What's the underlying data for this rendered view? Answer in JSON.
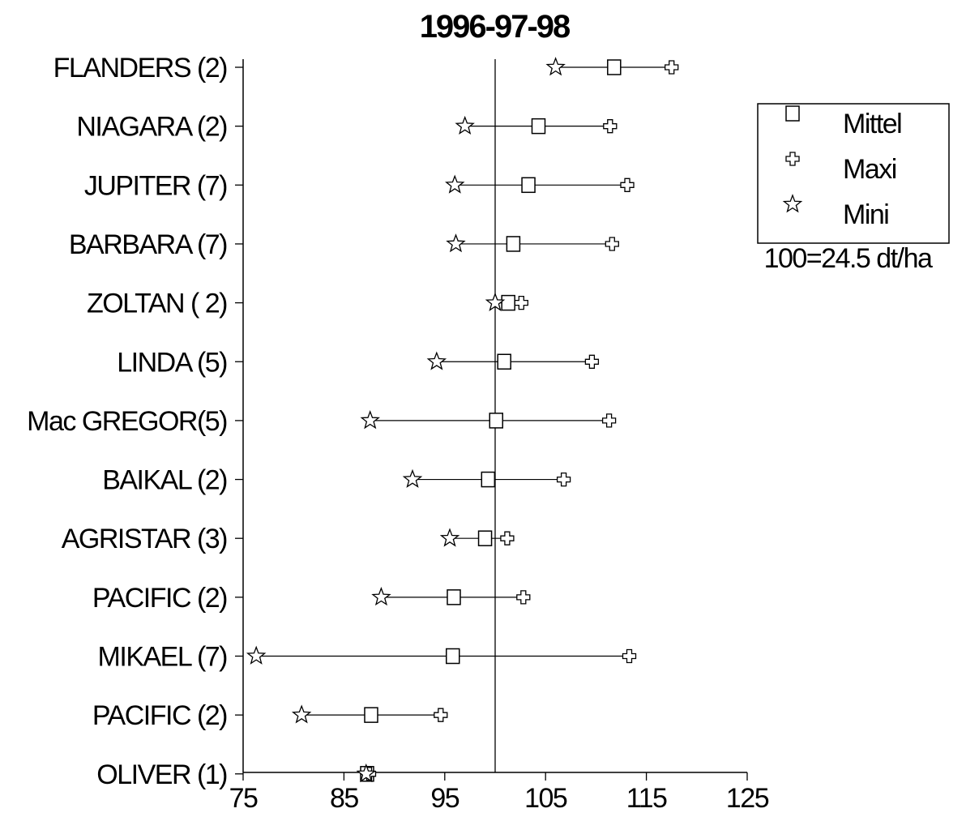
{
  "chart_data": {
    "type": "dot-range",
    "title": "1996-97-98",
    "note": "100=24.5 dt/ha",
    "categories": [
      "FLANDERS (2)",
      "NIAGARA (2)",
      "JUPITER (7)",
      "BARBARA (7)",
      "ZOLTAN ( 2)",
      "LINDA  (5)",
      "Mac GREGOR(5)",
      "BAIKAL (2)",
      "AGRISTAR (3)",
      "PACIFIC (2) ",
      "MIKAEL (7)",
      "PACIFIC (2)",
      "OLIVER (1)"
    ],
    "series": [
      {
        "name": "Mittel",
        "marker": "square",
        "values": [
          111.8,
          104.3,
          103.3,
          101.8,
          101.3,
          100.9,
          100.1,
          99.3,
          99.0,
          95.9,
          95.8,
          87.7,
          87.3
        ]
      },
      {
        "name": "Maxi",
        "marker": "cross",
        "values": [
          117.5,
          111.4,
          113.1,
          111.6,
          102.6,
          109.6,
          111.3,
          106.8,
          101.2,
          102.8,
          113.3,
          94.6,
          87.5
        ]
      },
      {
        "name": "Mini",
        "marker": "star",
        "values": [
          106.0,
          97.0,
          96.0,
          96.1,
          100.0,
          94.2,
          87.6,
          91.8,
          95.5,
          88.7,
          76.3,
          80.8,
          87.2
        ]
      }
    ],
    "reference_line": 100,
    "xlim": [
      75,
      125
    ],
    "x_ticks": [
      75,
      85,
      95,
      105,
      115,
      125
    ],
    "x_tick_labels": [
      "75",
      "85",
      "95",
      "105",
      "115",
      "125"
    ],
    "xlabel": "",
    "ylabel": "",
    "legend": {
      "placement": "top-right",
      "entries": [
        "Mittel",
        "Maxi",
        "Mini"
      ]
    },
    "grid": false,
    "colors": {
      "line": "#000000",
      "marker_fill": "#ffffff",
      "background": "#ffffff"
    }
  }
}
